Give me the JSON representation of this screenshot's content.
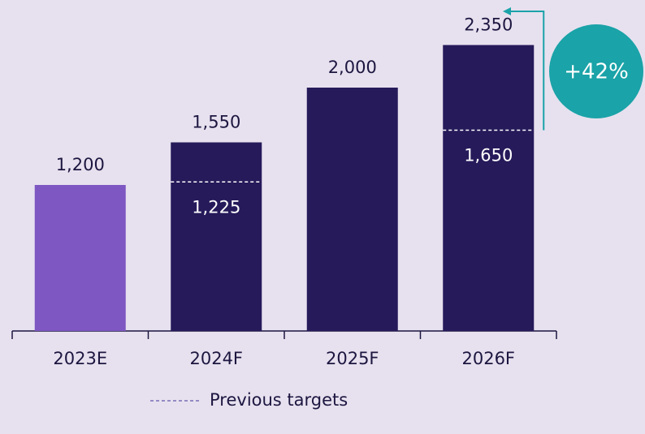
{
  "chart_data": {
    "type": "bar",
    "categories": [
      "2023E",
      "2024F",
      "2025F",
      "2026F"
    ],
    "values": [
      1200,
      1550,
      2000,
      2350
    ],
    "value_labels": [
      "1,200",
      "1,550",
      "2,000",
      "2,350"
    ],
    "colors": [
      "#7e57c2",
      "#261a5a",
      "#261a5a",
      "#261a5a"
    ],
    "series": [
      {
        "name": "Previous targets",
        "values": [
          null,
          1225,
          null,
          1650
        ],
        "value_labels": [
          null,
          "1,225",
          null,
          "1,650"
        ],
        "color": "#ffffff",
        "legend_color": "#7a6db5"
      }
    ],
    "annotation": {
      "text": "+42%",
      "color": "#1aa3a8"
    }
  }
}
